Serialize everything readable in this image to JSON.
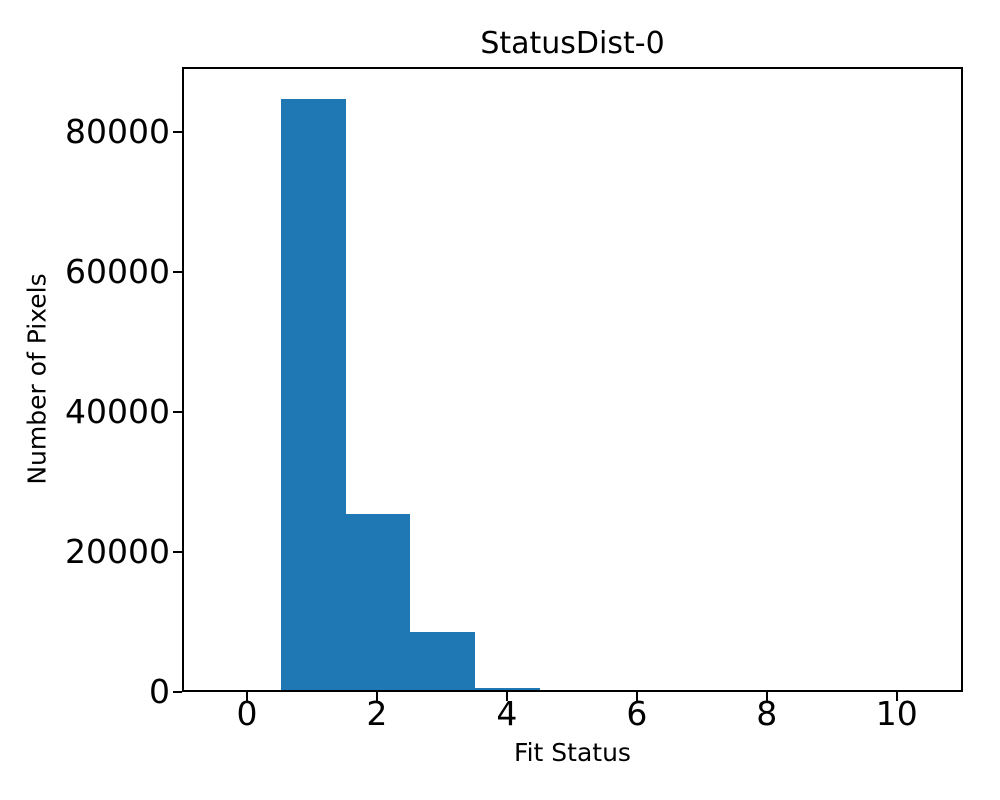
{
  "figure": {
    "background": "#ffffff",
    "text_color": "#000000"
  },
  "chart_data": {
    "type": "bar",
    "title": "StatusDist-0",
    "xlabel": "Fit Status",
    "ylabel": "Number of Pixels",
    "bar_color": "#1f77b4",
    "bin_edges": [
      0.5,
      1.5,
      2.5,
      3.5,
      4.5
    ],
    "values": [
      85000,
      25300,
      8300,
      350
    ],
    "xlim": [
      -1.0,
      11.02
    ],
    "ylim": [
      0,
      89286
    ],
    "xticks": [
      0,
      2,
      4,
      6,
      8,
      10
    ],
    "yticks": [
      0,
      20000,
      40000,
      60000,
      80000
    ],
    "grid": false,
    "legend_position": "none"
  }
}
